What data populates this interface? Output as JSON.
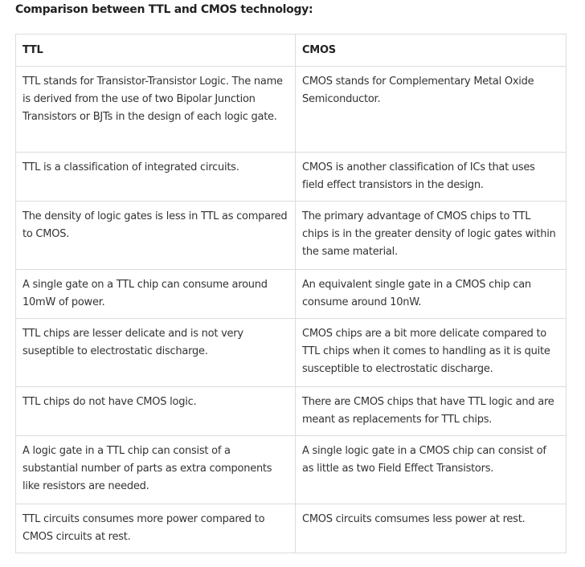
{
  "heading": "Comparison between TTL and CMOS technology:",
  "table": {
    "headers": [
      "TTL",
      "CMOS"
    ],
    "rows": [
      [
        "TTL stands for Transistor-Transistor Logic. The name is derived from the use of two Bipolar Junction Transistors or BJTs in the design of each logic gate.",
        "CMOS stands for Complementary Metal Oxide Semiconductor."
      ],
      [
        "TTL is a classification of integrated circuits.",
        "CMOS is another classification of ICs that uses field effect transistors in the design."
      ],
      [
        "The density of logic gates is less in TTL as compared to CMOS.",
        "The primary advantage of CMOS chips to TTL chips is in the greater density of logic gates within the same material."
      ],
      [
        "A single gate on a TTL chip can consume around 10mW of power.",
        "An equivalent single gate in a CMOS chip can consume around 10nW."
      ],
      [
        "TTL chips are lesser delicate and is not very suseptible to electrostatic discharge.",
        "CMOS chips are a bit more delicate compared to TTL chips when it comes to handling as it is quite susceptible to electrostatic discharge."
      ],
      [
        "TTL chips do not have CMOS logic.",
        "There are CMOS chips that have TTL logic and are meant as replacements for TTL chips."
      ],
      [
        "A logic gate in a TTL chip can consist of a substantial number of parts as extra components like resistors are needed.",
        "A single logic gate in a CMOS chip can consist of as little as two Field Effect Transistors."
      ],
      [
        "TTL circuits consumes more power compared to CMOS circuits at rest.",
        "CMOS circuits comsumes less power at rest."
      ]
    ]
  }
}
